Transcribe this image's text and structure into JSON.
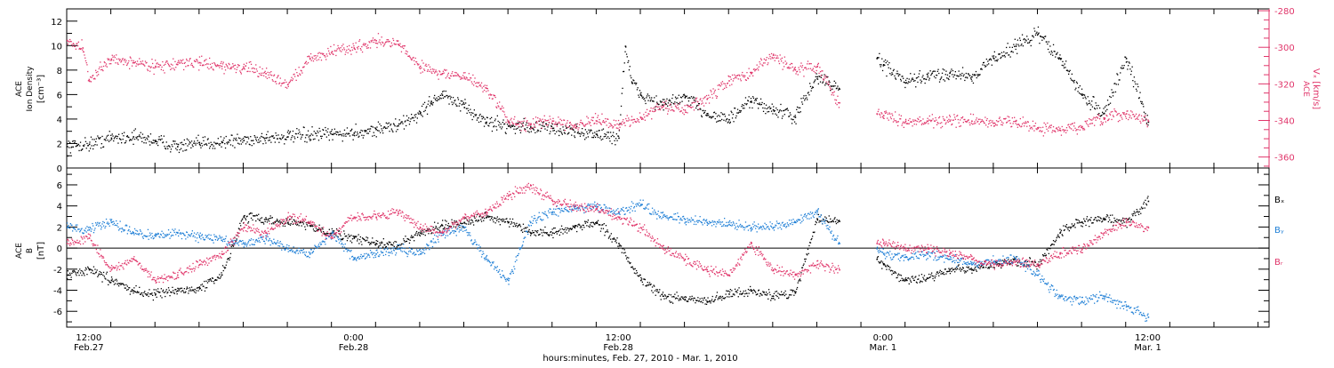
{
  "colors": {
    "ion_density": "#000000",
    "vx": "#e0356a",
    "bx": "#000000",
    "by": "#1f7fd6",
    "bz": "#e0356a",
    "axis": "#000000"
  },
  "xaxis": {
    "title": "hours:minutes, Feb. 27, 2010 - Mar. 1, 2010",
    "ticks": [
      {
        "hour": 12,
        "time": "12:00",
        "date": "Feb.27"
      },
      {
        "hour": 24,
        "time": "0:00",
        "date": "Feb.28"
      },
      {
        "hour": 36,
        "time": "12:00",
        "date": "Feb.28"
      },
      {
        "hour": 48,
        "time": "0:00",
        "date": "Mar. 1"
      },
      {
        "hour": 60,
        "time": "12:00",
        "date": "Mar. 1"
      }
    ]
  },
  "chart_data": [
    {
      "type": "scatter",
      "panel": "top",
      "ylabel_left": [
        "ACE",
        "Ion Density",
        "[cm⁻³]"
      ],
      "ylabel_right": [
        "ACE",
        "Vₓ [km/s]"
      ],
      "xlim": [
        11,
        65.5
      ],
      "ylim_left": [
        0,
        13
      ],
      "ylim_right": [
        -366,
        -279
      ],
      "yticks_left": [
        "0",
        "2",
        "4",
        "6",
        "8",
        "10",
        "12"
      ],
      "yticks_right": [
        "-360",
        "-340",
        "-320",
        "-300",
        "-280"
      ],
      "gaps": [
        [
          46,
          47.7
        ]
      ],
      "series": [
        {
          "name": "Ion Density",
          "axis": "left",
          "color": "#000000",
          "points": [
            [
              11,
              1.8
            ],
            [
              12,
              2.0
            ],
            [
              13,
              2.5
            ],
            [
              14,
              2.6
            ],
            [
              15,
              2.3
            ],
            [
              16,
              1.8
            ],
            [
              17,
              2.0
            ],
            [
              18,
              2.2
            ],
            [
              19,
              2.3
            ],
            [
              20,
              2.5
            ],
            [
              21,
              2.6
            ],
            [
              22,
              2.7
            ],
            [
              23,
              2.8
            ],
            [
              24,
              2.9
            ],
            [
              25,
              3.2
            ],
            [
              26,
              3.5
            ],
            [
              27,
              4.5
            ],
            [
              27.5,
              5.5
            ],
            [
              28,
              6.0
            ],
            [
              29,
              5.0
            ],
            [
              30,
              3.8
            ],
            [
              31,
              3.5
            ],
            [
              32,
              3.4
            ],
            [
              33,
              3.3
            ],
            [
              34,
              3.0
            ],
            [
              35,
              2.8
            ],
            [
              36,
              2.5
            ],
            [
              36.3,
              10.0
            ],
            [
              36.6,
              7.0
            ],
            [
              37,
              6.0
            ],
            [
              38,
              5.2
            ],
            [
              39,
              5.8
            ],
            [
              40,
              4.5
            ],
            [
              41,
              4.0
            ],
            [
              42,
              5.5
            ],
            [
              43,
              4.8
            ],
            [
              44,
              4.2
            ],
            [
              45,
              7.5
            ],
            [
              46,
              6.5
            ],
            [
              47.7,
              9.0
            ],
            [
              48,
              8.5
            ],
            [
              49,
              7.0
            ],
            [
              50,
              7.5
            ],
            [
              51,
              7.8
            ],
            [
              52,
              7.5
            ],
            [
              53,
              9.0
            ],
            [
              54,
              10.0
            ],
            [
              55,
              11.0
            ],
            [
              56,
              9.0
            ],
            [
              57,
              6.0
            ],
            [
              58,
              4.5
            ],
            [
              59,
              9.0
            ],
            [
              60,
              3.8
            ]
          ]
        },
        {
          "name": "Vx",
          "axis": "right",
          "color": "#e0356a",
          "points": [
            [
              11,
              -296
            ],
            [
              11.7,
              -300
            ],
            [
              12,
              -318
            ],
            [
              13,
              -306
            ],
            [
              14,
              -308
            ],
            [
              15,
              -310
            ],
            [
              16,
              -309
            ],
            [
              17,
              -308
            ],
            [
              18,
              -310
            ],
            [
              19,
              -311
            ],
            [
              20,
              -314
            ],
            [
              21,
              -320
            ],
            [
              22,
              -306
            ],
            [
              23,
              -302
            ],
            [
              24,
              -300
            ],
            [
              25,
              -296
            ],
            [
              26,
              -298
            ],
            [
              27,
              -310
            ],
            [
              28,
              -314
            ],
            [
              29,
              -316
            ],
            [
              30,
              -322
            ],
            [
              31,
              -340
            ],
            [
              32,
              -342
            ],
            [
              33,
              -340
            ],
            [
              34,
              -342
            ],
            [
              35,
              -340
            ],
            [
              36,
              -342
            ],
            [
              37,
              -338
            ],
            [
              38,
              -332
            ],
            [
              39,
              -334
            ],
            [
              40,
              -328
            ],
            [
              41,
              -318
            ],
            [
              42,
              -314
            ],
            [
              43,
              -304
            ],
            [
              44,
              -312
            ],
            [
              45,
              -310
            ],
            [
              46,
              -330
            ],
            [
              47.7,
              -336
            ],
            [
              48,
              -337
            ],
            [
              49,
              -340
            ],
            [
              50,
              -340
            ],
            [
              51,
              -340
            ],
            [
              52,
              -340
            ],
            [
              53,
              -341
            ],
            [
              54,
              -340
            ],
            [
              55,
              -344
            ],
            [
              56,
              -345
            ],
            [
              57,
              -343
            ],
            [
              58,
              -339
            ],
            [
              59,
              -336
            ],
            [
              60,
              -340
            ]
          ]
        }
      ]
    },
    {
      "type": "scatter",
      "panel": "bottom",
      "ylabel_left": [
        "ACE",
        "B",
        "[nT]"
      ],
      "xlim": [
        11,
        65.5
      ],
      "ylim": [
        -7.5,
        7.6
      ],
      "yticks": [
        "-6",
        "-4",
        "-2",
        "0",
        "2",
        "4",
        "6"
      ],
      "zero_line": true,
      "gaps": [
        [
          46,
          47.7
        ]
      ],
      "legend": [
        "Bₓ",
        "Bᵧ",
        "Bᵣ"
      ],
      "series": [
        {
          "name": "Bx",
          "color": "#000000",
          "points": [
            [
              11,
              -2.5
            ],
            [
              12,
              -2.0
            ],
            [
              13,
              -3.0
            ],
            [
              14,
              -4.0
            ],
            [
              15,
              -4.3
            ],
            [
              16,
              -4.0
            ],
            [
              17,
              -3.8
            ],
            [
              18,
              -2.5
            ],
            [
              19,
              3.0
            ],
            [
              20,
              2.8
            ],
            [
              21,
              2.5
            ],
            [
              22,
              2.2
            ],
            [
              23,
              1.5
            ],
            [
              24,
              1.0
            ],
            [
              25,
              0.5
            ],
            [
              26,
              0.3
            ],
            [
              27,
              1.5
            ],
            [
              28,
              2.2
            ],
            [
              29,
              2.5
            ],
            [
              30,
              3.0
            ],
            [
              31,
              2.5
            ],
            [
              32,
              1.5
            ],
            [
              33,
              1.5
            ],
            [
              34,
              2.0
            ],
            [
              35,
              2.5
            ],
            [
              36,
              0.5
            ],
            [
              37,
              -3.0
            ],
            [
              38,
              -4.5
            ],
            [
              39,
              -4.8
            ],
            [
              40,
              -5.0
            ],
            [
              41,
              -4.3
            ],
            [
              42,
              -4.0
            ],
            [
              43,
              -4.5
            ],
            [
              44,
              -4.2
            ],
            [
              45,
              2.8
            ],
            [
              46,
              2.6
            ],
            [
              47.7,
              -1.0
            ],
            [
              48,
              -1.5
            ],
            [
              49,
              -3.0
            ],
            [
              50,
              -2.8
            ],
            [
              51,
              -2.0
            ],
            [
              52,
              -2.0
            ],
            [
              53,
              -1.5
            ],
            [
              54,
              -1.2
            ],
            [
              55,
              -1.5
            ],
            [
              56,
              1.5
            ],
            [
              57,
              2.5
            ],
            [
              58,
              2.8
            ],
            [
              59,
              2.5
            ],
            [
              60,
              4.5
            ]
          ]
        },
        {
          "name": "By",
          "color": "#1f7fd6",
          "points": [
            [
              11,
              2.0
            ],
            [
              12,
              1.8
            ],
            [
              13,
              2.5
            ],
            [
              14,
              1.5
            ],
            [
              15,
              1.2
            ],
            [
              16,
              1.5
            ],
            [
              17,
              1.2
            ],
            [
              18,
              0.8
            ],
            [
              19,
              0.5
            ],
            [
              20,
              1.0
            ],
            [
              21,
              0.0
            ],
            [
              22,
              -0.5
            ],
            [
              23,
              1.5
            ],
            [
              24,
              -1.0
            ],
            [
              25,
              -0.5
            ],
            [
              26,
              0.0
            ],
            [
              27,
              -0.5
            ],
            [
              28,
              1.5
            ],
            [
              29,
              2.0
            ],
            [
              30,
              -1.0
            ],
            [
              31,
              -3.0
            ],
            [
              32,
              2.5
            ],
            [
              33,
              3.5
            ],
            [
              34,
              3.8
            ],
            [
              35,
              4.0
            ],
            [
              36,
              3.5
            ],
            [
              37,
              4.2
            ],
            [
              38,
              3.0
            ],
            [
              39,
              2.8
            ],
            [
              40,
              2.5
            ],
            [
              41,
              2.3
            ],
            [
              42,
              2.0
            ],
            [
              43,
              2.0
            ],
            [
              44,
              2.5
            ],
            [
              45,
              3.5
            ],
            [
              46,
              0.5
            ],
            [
              47.7,
              0.0
            ],
            [
              48,
              -0.5
            ],
            [
              49,
              -0.8
            ],
            [
              50,
              -0.5
            ],
            [
              51,
              -1.0
            ],
            [
              52,
              -1.5
            ],
            [
              53,
              -1.2
            ],
            [
              54,
              -1.0
            ],
            [
              55,
              -2.5
            ],
            [
              56,
              -4.5
            ],
            [
              57,
              -5.0
            ],
            [
              58,
              -4.5
            ],
            [
              59,
              -5.5
            ],
            [
              60,
              -6.5
            ]
          ]
        },
        {
          "name": "Bz",
          "color": "#e0356a",
          "points": [
            [
              11,
              0.5
            ],
            [
              12,
              1.0
            ],
            [
              13,
              -2.0
            ],
            [
              14,
              -1.0
            ],
            [
              15,
              -3.0
            ],
            [
              16,
              -2.5
            ],
            [
              17,
              -1.5
            ],
            [
              18,
              -0.5
            ],
            [
              19,
              2.0
            ],
            [
              20,
              1.5
            ],
            [
              21,
              3.0
            ],
            [
              22,
              2.5
            ],
            [
              23,
              1.0
            ],
            [
              24,
              3.0
            ],
            [
              25,
              3.0
            ],
            [
              26,
              3.5
            ],
            [
              27,
              2.0
            ],
            [
              28,
              1.5
            ],
            [
              29,
              3.0
            ],
            [
              30,
              3.5
            ],
            [
              31,
              5.0
            ],
            [
              32,
              6.0
            ],
            [
              33,
              4.5
            ],
            [
              34,
              4.0
            ],
            [
              35,
              3.8
            ],
            [
              36,
              3.0
            ],
            [
              37,
              2.0
            ],
            [
              38,
              0.0
            ],
            [
              39,
              -1.0
            ],
            [
              40,
              -2.0
            ],
            [
              41,
              -2.5
            ],
            [
              42,
              0.5
            ],
            [
              43,
              -2.0
            ],
            [
              44,
              -2.5
            ],
            [
              45,
              -1.5
            ],
            [
              46,
              -2.0
            ],
            [
              47.7,
              0.5
            ],
            [
              48,
              0.5
            ],
            [
              49,
              0.0
            ],
            [
              50,
              0.0
            ],
            [
              51,
              -0.5
            ],
            [
              52,
              -1.0
            ],
            [
              53,
              -1.5
            ],
            [
              54,
              -1.2
            ],
            [
              55,
              -1.5
            ],
            [
              56,
              -0.5
            ],
            [
              57,
              0.0
            ],
            [
              58,
              1.5
            ],
            [
              59,
              2.5
            ],
            [
              60,
              2.0
            ]
          ]
        }
      ]
    }
  ]
}
